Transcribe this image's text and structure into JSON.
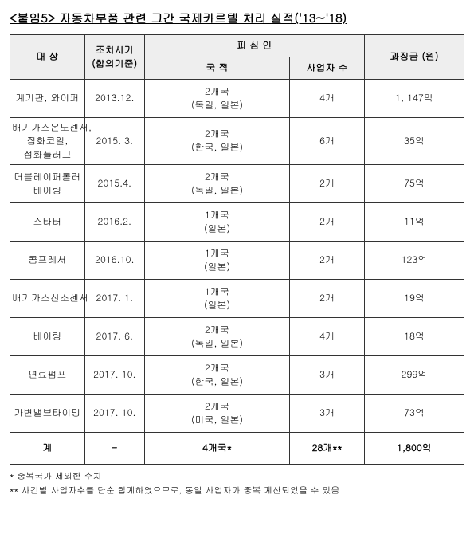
{
  "title": "<붙임5>  자동차부품 관련 그간 국제카르텔 처리 실적('13~'18)",
  "headers": {
    "target": "대 상",
    "date": "조치시기\n(합의기준)",
    "respondent": "피 심 인",
    "nationality": "국 적",
    "bizCount": "사업자 수",
    "fine": "과징금 (원)"
  },
  "rows": [
    {
      "target": "계기판, 와이퍼",
      "date": "2013.12.",
      "nation": "2개국\n(독일, 일본)",
      "count": "4개",
      "fine": "1, 147억"
    },
    {
      "target": "배기가스온도센서,\n점화코일,\n점화플러그",
      "date": "2015. 3.",
      "nation": "2개국\n(한국, 일본)",
      "count": "6개",
      "fine": "35억"
    },
    {
      "target": "더블레이퍼롤러\n베어링",
      "date": "2015.4.",
      "nation": "2개국\n(독일, 일본)",
      "count": "2개",
      "fine": "75억"
    },
    {
      "target": "스타터",
      "date": "2016.2.",
      "nation": "1개국\n(일본)",
      "count": "2개",
      "fine": "11억"
    },
    {
      "target": "콤프레서",
      "date": "2016.10.",
      "nation": "1개국\n(일본)",
      "count": "2개",
      "fine": "123억"
    },
    {
      "target": "배기가스산소센서",
      "date": "2017. 1.",
      "nation": "1개국\n(일본)",
      "count": "2개",
      "fine": "19억"
    },
    {
      "target": "베어링",
      "date": "2017. 6.",
      "nation": "2개국\n(독일, 일본)",
      "count": "4개",
      "fine": "18억"
    },
    {
      "target": "연료펌프",
      "date": "2017. 10.",
      "nation": "2개국\n(한국, 일본)",
      "count": "3개",
      "fine": "299억"
    },
    {
      "target": "가변밸브타이밍",
      "date": "2017. 10.",
      "nation": "2개국\n(미국, 일본)",
      "count": "3개",
      "fine": "73억"
    }
  ],
  "total": {
    "label": "계",
    "date": "-",
    "nation": "4개국*",
    "count": "28개**",
    "fine": "1,800억"
  },
  "notes": {
    "n1": "  * 중복국가 제외한 수치",
    "n2": "** 사건별 사업자수를 단순 합계하였으므로, 동일 사업자가 중복 계산되었을 수 있음"
  }
}
